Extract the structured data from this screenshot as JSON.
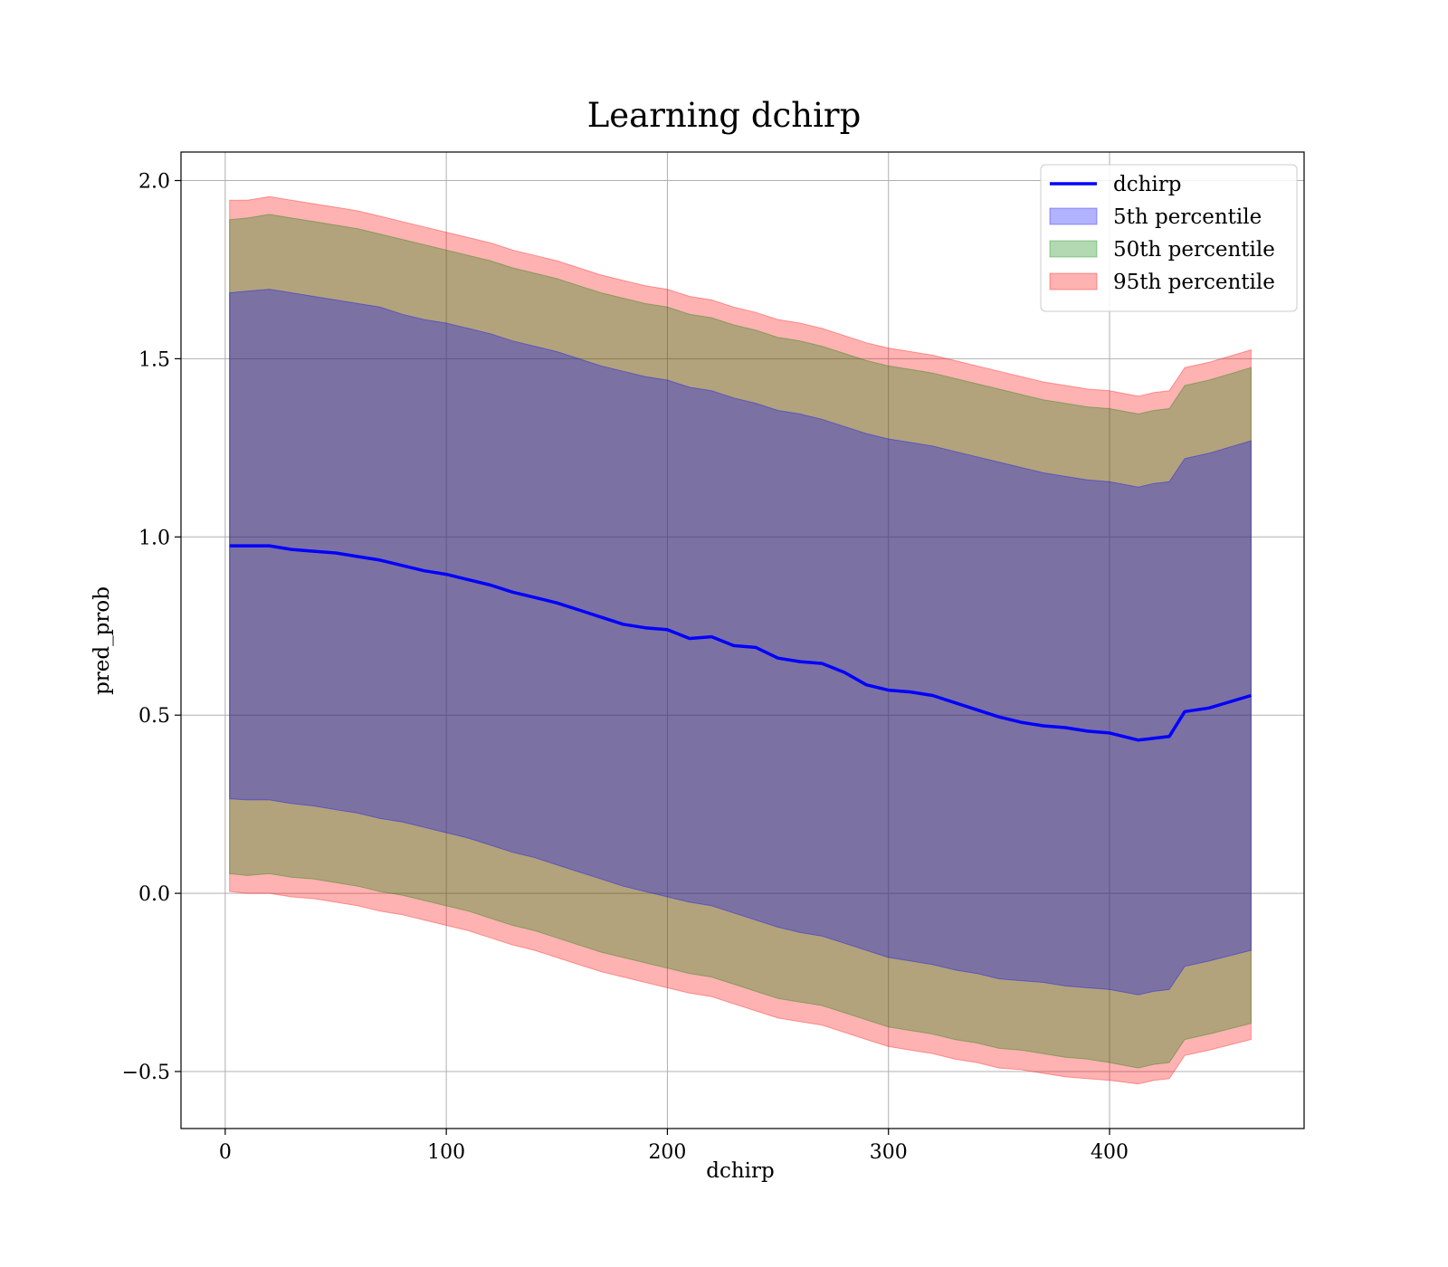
{
  "chart_data": {
    "type": "line",
    "title": "Learning dchirp",
    "xlabel": "dchirp",
    "ylabel": "pred_prob",
    "xlim": [
      -20,
      488
    ],
    "ylim": [
      -0.66,
      2.08
    ],
    "xticks": [
      0,
      100,
      200,
      300,
      400
    ],
    "yticks": [
      -0.5,
      0.0,
      0.5,
      1.0,
      1.5,
      2.0
    ],
    "xtick_labels": [
      "0",
      "100",
      "200",
      "300",
      "400"
    ],
    "ytick_labels": [
      "−0.5",
      "0.0",
      "0.5",
      "1.0",
      "1.5",
      "2.0"
    ],
    "grid": true,
    "legend_position": "top-right",
    "x": [
      2,
      10,
      20,
      30,
      40,
      50,
      60,
      70,
      80,
      90,
      100,
      110,
      120,
      130,
      140,
      150,
      160,
      170,
      180,
      190,
      200,
      210,
      220,
      230,
      240,
      250,
      260,
      270,
      280,
      290,
      300,
      310,
      320,
      330,
      340,
      350,
      360,
      370,
      380,
      390,
      400,
      413,
      420,
      427,
      434,
      445,
      464
    ],
    "series": [
      {
        "name": "dchirp",
        "kind": "line",
        "color": "#0000ff",
        "values": [
          0.975,
          0.975,
          0.975,
          0.965,
          0.96,
          0.955,
          0.945,
          0.935,
          0.92,
          0.905,
          0.895,
          0.88,
          0.865,
          0.845,
          0.83,
          0.815,
          0.795,
          0.775,
          0.755,
          0.745,
          0.74,
          0.715,
          0.72,
          0.695,
          0.69,
          0.66,
          0.65,
          0.645,
          0.62,
          0.585,
          0.57,
          0.565,
          0.555,
          0.535,
          0.515,
          0.495,
          0.48,
          0.47,
          0.465,
          0.455,
          0.45,
          0.43,
          0.435,
          0.44,
          0.51,
          0.52,
          0.555
        ]
      },
      {
        "name": "5th percentile",
        "kind": "band",
        "color": "#0000ff",
        "lower": [
          0.265,
          0.262,
          0.262,
          0.252,
          0.245,
          0.235,
          0.225,
          0.21,
          0.2,
          0.185,
          0.17,
          0.155,
          0.135,
          0.115,
          0.1,
          0.08,
          0.06,
          0.04,
          0.02,
          0.005,
          -0.01,
          -0.025,
          -0.035,
          -0.055,
          -0.075,
          -0.095,
          -0.11,
          -0.12,
          -0.14,
          -0.16,
          -0.18,
          -0.19,
          -0.2,
          -0.215,
          -0.225,
          -0.24,
          -0.245,
          -0.25,
          -0.26,
          -0.265,
          -0.27,
          -0.285,
          -0.275,
          -0.27,
          -0.205,
          -0.19,
          -0.16
        ],
        "upper": [
          1.685,
          1.69,
          1.695,
          1.685,
          1.675,
          1.665,
          1.655,
          1.645,
          1.625,
          1.61,
          1.6,
          1.585,
          1.57,
          1.55,
          1.535,
          1.52,
          1.5,
          1.48,
          1.465,
          1.45,
          1.44,
          1.42,
          1.41,
          1.39,
          1.375,
          1.355,
          1.345,
          1.33,
          1.31,
          1.29,
          1.275,
          1.265,
          1.255,
          1.24,
          1.225,
          1.21,
          1.195,
          1.18,
          1.17,
          1.16,
          1.155,
          1.14,
          1.15,
          1.155,
          1.22,
          1.235,
          1.27
        ]
      },
      {
        "name": "50th percentile",
        "kind": "band",
        "color": "#008000",
        "lower": [
          0.055,
          0.05,
          0.055,
          0.045,
          0.04,
          0.03,
          0.02,
          0.005,
          -0.005,
          -0.02,
          -0.035,
          -0.05,
          -0.07,
          -0.09,
          -0.105,
          -0.125,
          -0.145,
          -0.165,
          -0.18,
          -0.195,
          -0.21,
          -0.225,
          -0.235,
          -0.255,
          -0.275,
          -0.295,
          -0.305,
          -0.315,
          -0.335,
          -0.355,
          -0.375,
          -0.385,
          -0.395,
          -0.41,
          -0.42,
          -0.435,
          -0.44,
          -0.45,
          -0.46,
          -0.465,
          -0.475,
          -0.49,
          -0.48,
          -0.475,
          -0.41,
          -0.395,
          -0.365
        ],
        "upper": [
          1.89,
          1.895,
          1.905,
          1.895,
          1.885,
          1.875,
          1.865,
          1.85,
          1.835,
          1.82,
          1.805,
          1.79,
          1.775,
          1.755,
          1.74,
          1.725,
          1.705,
          1.685,
          1.67,
          1.655,
          1.645,
          1.625,
          1.615,
          1.595,
          1.58,
          1.56,
          1.55,
          1.535,
          1.515,
          1.495,
          1.48,
          1.47,
          1.46,
          1.445,
          1.43,
          1.415,
          1.4,
          1.385,
          1.375,
          1.365,
          1.36,
          1.345,
          1.355,
          1.36,
          1.425,
          1.44,
          1.475
        ]
      },
      {
        "name": "95th percentile",
        "kind": "band",
        "color": "#ff0000",
        "lower": [
          0.005,
          0.0,
          0.0,
          -0.01,
          -0.015,
          -0.025,
          -0.035,
          -0.05,
          -0.06,
          -0.075,
          -0.09,
          -0.105,
          -0.125,
          -0.145,
          -0.16,
          -0.18,
          -0.2,
          -0.22,
          -0.235,
          -0.25,
          -0.265,
          -0.28,
          -0.29,
          -0.31,
          -0.33,
          -0.35,
          -0.36,
          -0.37,
          -0.39,
          -0.41,
          -0.43,
          -0.44,
          -0.45,
          -0.465,
          -0.475,
          -0.49,
          -0.495,
          -0.505,
          -0.515,
          -0.52,
          -0.525,
          -0.535,
          -0.525,
          -0.52,
          -0.455,
          -0.44,
          -0.41
        ],
        "upper": [
          1.945,
          1.945,
          1.955,
          1.945,
          1.935,
          1.925,
          1.915,
          1.9,
          1.885,
          1.87,
          1.855,
          1.84,
          1.825,
          1.805,
          1.79,
          1.775,
          1.755,
          1.735,
          1.72,
          1.705,
          1.695,
          1.675,
          1.665,
          1.645,
          1.63,
          1.61,
          1.6,
          1.585,
          1.565,
          1.545,
          1.53,
          1.52,
          1.51,
          1.495,
          1.48,
          1.465,
          1.45,
          1.435,
          1.425,
          1.415,
          1.41,
          1.395,
          1.405,
          1.41,
          1.475,
          1.49,
          1.525
        ]
      }
    ]
  }
}
